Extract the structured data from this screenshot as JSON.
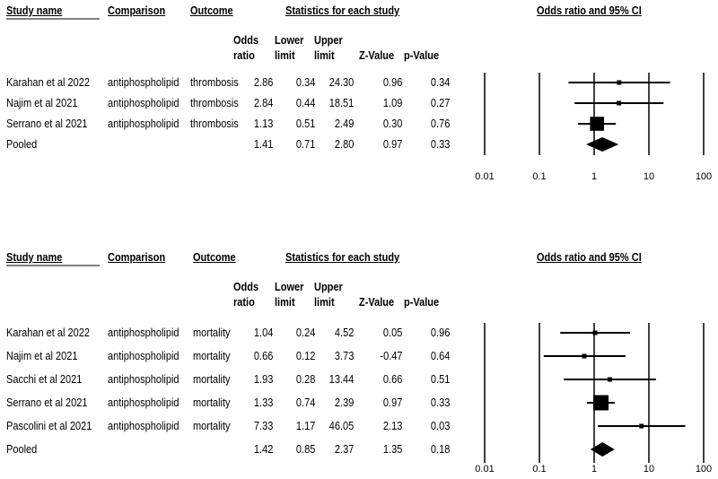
{
  "headers": {
    "study_name": "Study name",
    "comparison": "Comparison",
    "outcome": "Outcome",
    "statistics": "Statistics for each study",
    "plot": "Odds ratio and 95% CI",
    "odds_1": "Odds",
    "odds_2": "ratio",
    "lower_1": "Lower",
    "lower_2": "limit",
    "upper_1": "Upper",
    "upper_2": "limit",
    "z": "Z-Value",
    "p": "p-Value"
  },
  "chart_data": [
    {
      "type": "forest",
      "title": "Odds ratio and 95% CI",
      "scale": "log",
      "xticks": [
        "0.01",
        "0.1",
        "1",
        "10",
        "100"
      ],
      "xlim": [
        0.01,
        100
      ],
      "rows": [
        {
          "study": "Karahan et al 2022",
          "comparison": "antiphospholipid",
          "outcome": "thrombosis",
          "or": "2.86",
          "lower": "0.34",
          "upper": "24.30",
          "z": "0.96",
          "p": "0.34",
          "weight": 1
        },
        {
          "study": "Najim et al 2021",
          "comparison": "antiphospholipid",
          "outcome": "thrombosis",
          "or": "2.84",
          "lower": "0.44",
          "upper": "18.51",
          "z": "1.09",
          "p": "0.27",
          "weight": 1
        },
        {
          "study": "Serrano et al 2021",
          "comparison": "antiphospholipid",
          "outcome": "thrombosis",
          "or": "1.13",
          "lower": "0.51",
          "upper": "2.49",
          "z": "0.30",
          "p": "0.76",
          "weight": 4
        }
      ],
      "pooled": {
        "study": "Pooled",
        "or": "1.41",
        "lower": "0.71",
        "upper": "2.80",
        "z": "0.97",
        "p": "0.33"
      }
    },
    {
      "type": "forest",
      "title": "Odds ratio and 95% CI",
      "scale": "log",
      "xticks": [
        "0.01",
        "0.1",
        "1",
        "10",
        "100"
      ],
      "xlim": [
        0.01,
        100
      ],
      "rows": [
        {
          "study": "Karahan et al 2022",
          "comparison": "antiphospholipid",
          "outcome": "mortality",
          "or": "1.04",
          "lower": "0.24",
          "upper": "4.52",
          "z": "0.05",
          "p": "0.96",
          "weight": 1
        },
        {
          "study": "Najim et al 2021",
          "comparison": "antiphospholipid",
          "outcome": "mortality",
          "or": "0.66",
          "lower": "0.12",
          "upper": "3.73",
          "z": "-0.47",
          "p": "0.64",
          "weight": 1
        },
        {
          "study": "Sacchi et al 2021",
          "comparison": "antiphospholipid",
          "outcome": "mortality",
          "or": "1.93",
          "lower": "0.28",
          "upper": "13.44",
          "z": "0.66",
          "p": "0.51",
          "weight": 1
        },
        {
          "study": "Serrano et al 2021",
          "comparison": "antiphospholipid",
          "outcome": "mortality",
          "or": "1.33",
          "lower": "0.74",
          "upper": "2.39",
          "z": "0.97",
          "p": "0.33",
          "weight": 5
        },
        {
          "study": "Pascolini et al 2021",
          "comparison": "antiphospholipid",
          "outcome": "mortality",
          "or": "7.33",
          "lower": "1.17",
          "upper": "46.05",
          "z": "2.13",
          "p": "0.03",
          "weight": 1
        }
      ],
      "pooled": {
        "study": "Pooled",
        "or": "1.42",
        "lower": "0.85",
        "upper": "2.37",
        "z": "1.35",
        "p": "0.18"
      }
    }
  ]
}
